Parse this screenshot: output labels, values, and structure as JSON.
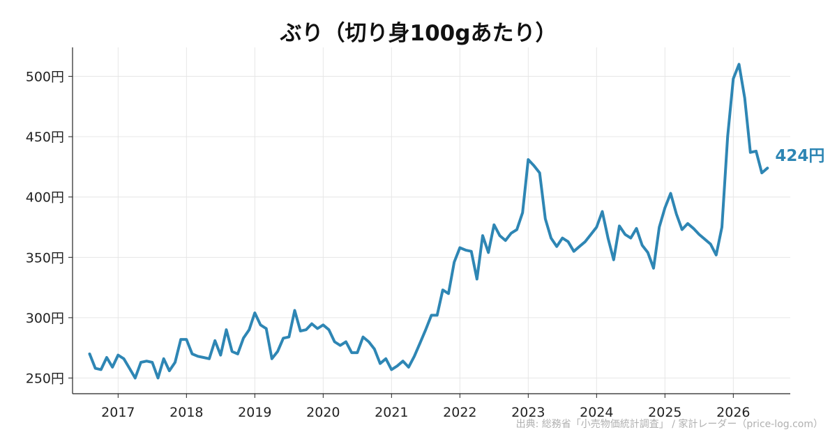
{
  "chart_data": {
    "type": "line",
    "title": "ぶり（切り身100gあたり）",
    "xlabel": "",
    "ylabel": "",
    "y_unit": "円",
    "ylim": [
      237,
      524
    ],
    "xlim": [
      "2016-05",
      "2026-11"
    ],
    "y_ticks": [
      250,
      300,
      350,
      400,
      450,
      500
    ],
    "y_tick_labels": [
      "250円",
      "300円",
      "350円",
      "400円",
      "450円",
      "500円"
    ],
    "x_ticks": [
      "2017-01",
      "2018-01",
      "2019-01",
      "2020-01",
      "2021-01",
      "2022-01",
      "2023-01",
      "2024-01",
      "2025-01",
      "2026-01"
    ],
    "x_tick_labels": [
      "2017",
      "2018",
      "2019",
      "2020",
      "2021",
      "2022",
      "2023",
      "2024",
      "2025",
      "2026"
    ],
    "grid": true,
    "color": "#2e86b4",
    "series": [
      {
        "x": [
          "2016-08",
          "2016-09",
          "2016-10",
          "2016-11",
          "2016-12",
          "2017-01",
          "2017-02",
          "2017-03",
          "2017-04",
          "2017-05",
          "2017-06",
          "2017-07",
          "2017-08",
          "2017-09",
          "2017-10",
          "2017-11",
          "2017-12",
          "2018-01",
          "2018-02",
          "2018-03",
          "2018-04",
          "2018-05",
          "2018-06",
          "2018-07",
          "2018-08",
          "2018-09",
          "2018-10",
          "2018-11",
          "2018-12",
          "2019-01",
          "2019-02",
          "2019-03",
          "2019-04",
          "2019-05",
          "2019-06",
          "2019-07",
          "2019-08",
          "2019-09",
          "2019-10",
          "2019-11",
          "2019-12",
          "2020-01",
          "2020-02",
          "2020-03",
          "2020-04",
          "2020-05",
          "2020-06",
          "2020-07",
          "2020-08",
          "2020-09",
          "2020-10",
          "2020-11",
          "2020-12",
          "2021-01",
          "2021-02",
          "2021-03",
          "2021-04",
          "2021-05",
          "2021-06",
          "2021-07",
          "2021-08",
          "2021-09",
          "2021-10",
          "2021-11",
          "2021-12",
          "2022-01",
          "2022-02",
          "2022-03",
          "2022-04",
          "2022-05",
          "2022-06",
          "2022-07",
          "2022-08",
          "2022-09",
          "2022-10",
          "2022-11",
          "2022-12",
          "2023-01",
          "2023-02",
          "2023-03",
          "2023-04",
          "2023-05",
          "2023-06",
          "2023-07",
          "2023-08",
          "2023-09",
          "2023-10",
          "2023-11",
          "2023-12",
          "2024-01",
          "2024-02",
          "2024-03",
          "2024-04",
          "2024-05",
          "2024-06",
          "2024-07",
          "2024-08",
          "2024-09",
          "2024-10",
          "2024-11",
          "2024-12",
          "2025-01",
          "2025-02",
          "2025-03",
          "2025-04",
          "2025-05",
          "2025-06",
          "2025-07",
          "2025-08",
          "2025-09",
          "2025-10",
          "2025-11",
          "2025-12",
          "2026-01",
          "2026-02",
          "2026-03",
          "2026-04",
          "2026-05",
          "2026-06",
          "2026-07"
        ],
        "values": [
          270,
          258,
          257,
          267,
          259,
          269,
          266,
          258,
          250,
          263,
          264,
          263,
          250,
          266,
          256,
          263,
          282,
          282,
          270,
          268,
          267,
          266,
          281,
          269,
          290,
          272,
          270,
          283,
          290,
          304,
          294,
          291,
          266,
          272,
          283,
          284,
          306,
          289,
          290,
          295,
          291,
          294,
          290,
          280,
          277,
          280,
          271,
          271,
          284,
          280,
          274,
          262,
          266,
          257,
          260,
          264,
          259,
          268,
          279,
          290,
          302,
          302,
          323,
          320,
          346,
          358,
          356,
          355,
          332,
          368,
          354,
          377,
          368,
          364,
          370,
          373,
          387,
          431,
          426,
          420,
          382,
          366,
          359,
          366,
          363,
          355,
          359,
          363,
          369,
          375,
          388,
          366,
          348,
          376,
          369,
          366,
          374,
          360,
          354,
          341,
          375,
          391,
          403,
          386,
          373,
          378,
          374,
          369,
          365,
          361,
          352,
          375,
          450,
          498,
          510,
          482,
          437,
          438,
          420,
          424
        ]
      }
    ],
    "end_label": "424円",
    "source_note": "出典: 総務省「小売物価統計調査」 / 家計レーダー（price-log.com）"
  }
}
